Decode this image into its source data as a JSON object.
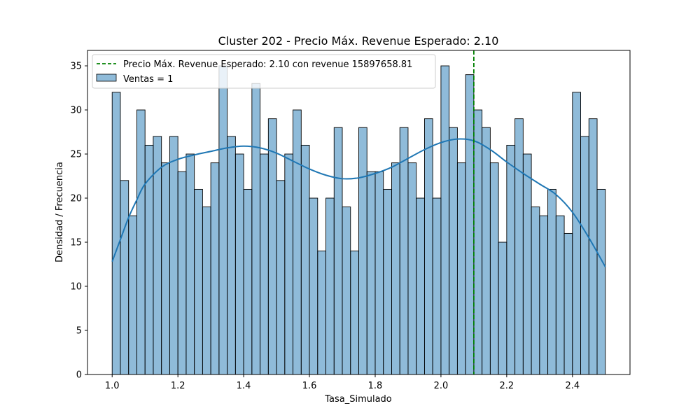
{
  "chart_data": {
    "type": "bar",
    "title": "Cluster 202 - Precio Máx. Revenue Esperado: 2.10",
    "xlabel": "Tasa_Simulado",
    "ylabel": "Densidad / Frecuencia",
    "xlim": [
      0.925,
      2.575
    ],
    "ylim": [
      0,
      36.75
    ],
    "xticks": [
      1.0,
      1.2,
      1.4,
      1.6,
      1.8,
      2.0,
      2.2,
      2.4
    ],
    "xtick_labels": [
      "1.0",
      "1.2",
      "1.4",
      "1.6",
      "1.8",
      "2.0",
      "2.2",
      "2.4"
    ],
    "yticks": [
      0,
      5,
      10,
      15,
      20,
      25,
      30,
      35
    ],
    "ytick_labels": [
      "0",
      "5",
      "10",
      "15",
      "20",
      "25",
      "30",
      "35"
    ],
    "grid": false,
    "legend_position": "top-left",
    "bins": {
      "start": 1.0,
      "end": 2.5,
      "counts": [
        32,
        22,
        18,
        30,
        26,
        27,
        24,
        27,
        23,
        25,
        21,
        19,
        24,
        35,
        27,
        25,
        21,
        33,
        25,
        29,
        22,
        25,
        30,
        26,
        20,
        14,
        20,
        28,
        19,
        14,
        28,
        23,
        23,
        21,
        24,
        28,
        24,
        20,
        29,
        20,
        35,
        28,
        24,
        34,
        30,
        28,
        24,
        15,
        26,
        29,
        25,
        19,
        18,
        21,
        18,
        16,
        32,
        27,
        29,
        21
      ]
    },
    "kde": {
      "x": [
        1.0,
        1.025,
        1.05,
        1.075,
        1.1,
        1.15,
        1.2,
        1.25,
        1.3,
        1.35,
        1.4,
        1.45,
        1.5,
        1.55,
        1.6,
        1.65,
        1.7,
        1.75,
        1.8,
        1.85,
        1.9,
        1.95,
        2.0,
        2.05,
        2.1,
        2.15,
        2.2,
        2.25,
        2.3,
        2.35,
        2.4,
        2.45,
        2.5
      ],
      "y": [
        12.8,
        15.3,
        17.8,
        19.8,
        21.6,
        23.5,
        24.4,
        24.9,
        25.3,
        25.7,
        25.9,
        25.7,
        25.1,
        24.2,
        23.3,
        22.6,
        22.2,
        22.3,
        22.8,
        23.5,
        24.5,
        25.5,
        26.3,
        26.7,
        26.5,
        25.5,
        24.1,
        22.8,
        21.6,
        20.4,
        18.4,
        15.5,
        12.2
      ]
    },
    "vline": {
      "x": 2.1,
      "label": "Precio Máx. Revenue Esperado: 2.10 con revenue 15897658.81",
      "color": "#008000"
    },
    "series": [
      {
        "name": "Ventas = 1",
        "color": "#1f77b4"
      }
    ],
    "legend": [
      {
        "label": "Precio Máx. Revenue Esperado: 2.10 con revenue 15897658.81",
        "kind": "dashed-line",
        "color": "#008000"
      },
      {
        "label": "Ventas = 1",
        "kind": "patch",
        "color": "#1f77b4"
      }
    ]
  }
}
